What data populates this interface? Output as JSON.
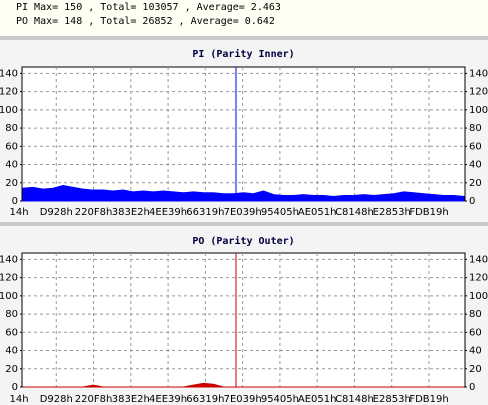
{
  "header": {
    "lines": [
      "PI Max= 150 , Total= 103057 , Average= 2.463",
      "PO Max= 148 , Total= 26852 , Average= 0.642"
    ]
  },
  "chart_data": [
    {
      "type": "area",
      "title": "PI (Parity Inner)",
      "x_labels": [
        "14h",
        "D928h",
        "220F8h",
        "383E2h",
        "4EE39h",
        "66319h",
        "7E039h",
        "95405h",
        "AE051h",
        "C8148h",
        "E2853h",
        "FDB19h"
      ],
      "values": [
        14,
        15,
        13,
        14,
        17,
        15,
        13,
        12,
        12,
        11,
        12,
        10,
        11,
        10,
        11,
        10,
        9,
        10,
        9,
        9,
        8,
        8,
        9,
        8,
        11,
        7,
        6,
        6,
        7,
        6,
        6,
        5,
        6,
        6,
        7,
        6,
        7,
        8,
        10,
        9,
        8,
        7,
        6,
        6,
        5
      ],
      "color": "#0000ff",
      "ylim": [
        0,
        147
      ],
      "yticks": [
        0,
        20,
        40,
        60,
        80,
        100,
        120,
        140
      ],
      "grid": true
    },
    {
      "type": "area",
      "title": "PO (Parity Outer)",
      "x_labels": [
        "14h",
        "D928h",
        "220F8h",
        "383E2h",
        "4EE39h",
        "66319h",
        "7E039h",
        "95405h",
        "AE051h",
        "C8148h",
        "E2853h",
        "FDB19h"
      ],
      "values": [
        0,
        0,
        0,
        0,
        0,
        0,
        0,
        2,
        0,
        0,
        0,
        0,
        0,
        0,
        0,
        0,
        0,
        2,
        4,
        3,
        0,
        0,
        0,
        0,
        0,
        0,
        0,
        0,
        0,
        0,
        0,
        0,
        0,
        0,
        0,
        0,
        0,
        0,
        0,
        0,
        0,
        0,
        0,
        0,
        0
      ],
      "color": "#cc0000",
      "ylim": [
        0,
        147
      ],
      "yticks": [
        0,
        20,
        40,
        60,
        80,
        100,
        120,
        140
      ],
      "grid": true
    }
  ]
}
